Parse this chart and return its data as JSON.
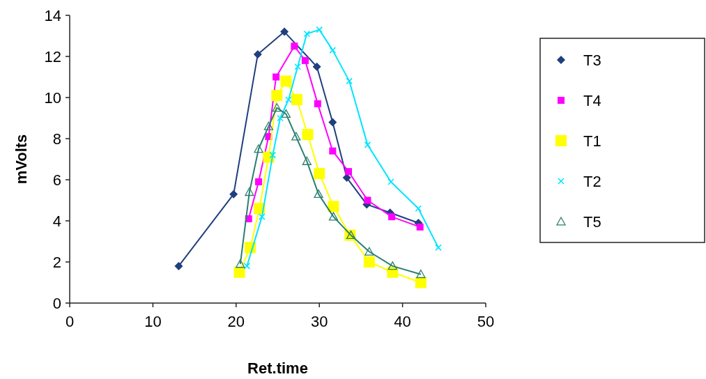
{
  "chart_data": {
    "type": "line",
    "xlabel": "Ret.time",
    "ylabel": "mVolts",
    "xlim": [
      0,
      50
    ],
    "xticks": [
      0,
      10,
      20,
      30,
      40,
      50
    ],
    "ylim": [
      0,
      14
    ],
    "yticks": [
      0,
      2,
      4,
      6,
      8,
      10,
      12,
      14
    ],
    "grid": false,
    "legend": "right",
    "series": [
      {
        "name": "T3",
        "color": "#1f3f7f",
        "marker": "diamond",
        "x": [
          13.1,
          19.7,
          22.6,
          25.8,
          29.7,
          31.6,
          33.3,
          35.7,
          38.5,
          41.9
        ],
        "values": [
          1.8,
          5.3,
          12.1,
          13.2,
          11.5,
          8.8,
          6.1,
          4.8,
          4.4,
          3.9
        ]
      },
      {
        "name": "T4",
        "color": "#ff00ff",
        "marker": "square",
        "x": [
          21.5,
          22.7,
          23.9,
          24.8,
          27.0,
          28.3,
          29.8,
          31.6,
          33.5,
          35.8,
          38.7,
          42.1
        ],
        "values": [
          4.1,
          5.9,
          8.1,
          11.0,
          12.5,
          11.8,
          9.7,
          7.4,
          6.4,
          5.0,
          4.2,
          3.7
        ]
      },
      {
        "name": "T1",
        "color": "#ffff00",
        "marker": "square",
        "x": [
          20.4,
          21.7,
          22.8,
          23.9,
          24.9,
          26.0,
          27.3,
          28.6,
          30.0,
          31.7,
          33.7,
          36.0,
          38.8,
          42.2
        ],
        "values": [
          1.5,
          2.7,
          4.6,
          7.1,
          10.1,
          10.8,
          9.9,
          8.2,
          6.3,
          4.7,
          3.3,
          2.0,
          1.5,
          1.0
        ]
      },
      {
        "name": "T2",
        "color": "#00e5ff",
        "marker": "cross",
        "x": [
          21.3,
          23.1,
          24.4,
          25.3,
          26.3,
          27.4,
          28.5,
          30.0,
          31.6,
          33.6,
          35.8,
          38.6,
          41.9,
          44.3
        ],
        "values": [
          1.8,
          4.2,
          7.2,
          9.0,
          9.9,
          11.5,
          13.1,
          13.3,
          12.3,
          10.8,
          7.7,
          5.9,
          4.6,
          2.7
        ]
      },
      {
        "name": "T5",
        "color": "#2a7f6f",
        "marker": "triangle",
        "x": [
          20.5,
          21.6,
          22.7,
          23.9,
          24.9,
          26.0,
          27.2,
          28.5,
          29.9,
          31.7,
          33.8,
          36.0,
          38.8,
          42.2
        ],
        "values": [
          1.9,
          5.4,
          7.5,
          8.6,
          9.5,
          9.2,
          8.1,
          6.9,
          5.3,
          4.2,
          3.3,
          2.5,
          1.8,
          1.4
        ]
      }
    ]
  }
}
